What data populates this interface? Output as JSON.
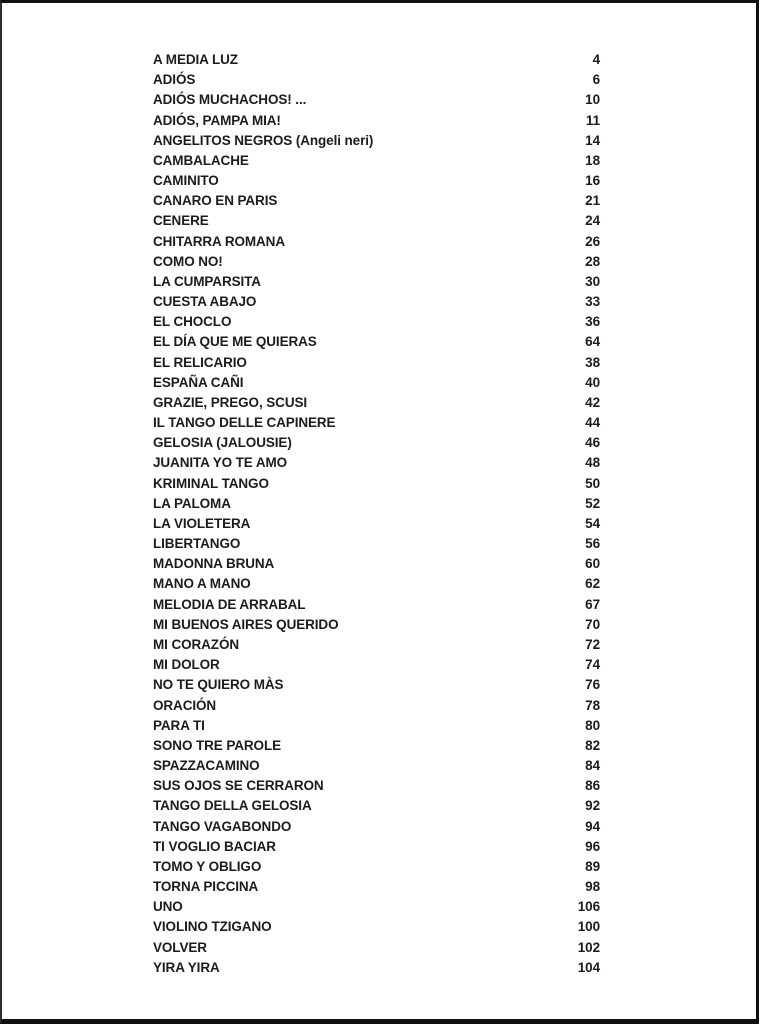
{
  "colors": {
    "page_background": "#ffffff",
    "text": "#1c1c1c",
    "frame": "#101010",
    "frame_left": "#2e2e2e"
  },
  "toc": {
    "entries": [
      {
        "title": "A MEDIA LUZ",
        "page": "4"
      },
      {
        "title": "ADIÓS",
        "page": "6"
      },
      {
        "title": "ADIÓS MUCHACHOS! ...",
        "page": "10"
      },
      {
        "title": "ADIÓS, PAMPA MIA!",
        "page": "11"
      },
      {
        "title": "ANGELITOS NEGROS (Angeli neri)",
        "page": "14"
      },
      {
        "title": "CAMBALACHE",
        "page": "18"
      },
      {
        "title": "CAMINITO",
        "page": "16"
      },
      {
        "title": "CANARO EN PARIS",
        "page": "21"
      },
      {
        "title": "CENERE",
        "page": "24"
      },
      {
        "title": "CHITARRA ROMANA",
        "page": "26"
      },
      {
        "title": "COMO NO!",
        "page": "28"
      },
      {
        "title": "LA CUMPARSITA",
        "page": "30"
      },
      {
        "title": "CUESTA ABAJO",
        "page": "33"
      },
      {
        "title": "EL CHOCLO",
        "page": "36"
      },
      {
        "title": "EL DÍA QUE ME QUIERAS",
        "page": "64"
      },
      {
        "title": "EL RELICARIO",
        "page": "38"
      },
      {
        "title": "ESPAÑA CAÑI",
        "page": "40"
      },
      {
        "title": "GRAZIE, PREGO, SCUSI",
        "page": "42"
      },
      {
        "title": "IL TANGO DELLE CAPINERE",
        "page": "44"
      },
      {
        "title": "GELOSIA (JALOUSIE)",
        "page": "46"
      },
      {
        "title": "JUANITA YO TE AMO",
        "page": "48"
      },
      {
        "title": "KRIMINAL TANGO",
        "page": "50"
      },
      {
        "title": "LA PALOMA",
        "page": "52"
      },
      {
        "title": "LA VIOLETERA",
        "page": "54"
      },
      {
        "title": "LIBERTANGO",
        "page": "56"
      },
      {
        "title": "MADONNA BRUNA",
        "page": "60"
      },
      {
        "title": "MANO A MANO",
        "page": "62"
      },
      {
        "title": "MELODIA DE ARRABAL",
        "page": "67"
      },
      {
        "title": "MI BUENOS AIRES QUERIDO",
        "page": "70"
      },
      {
        "title": "MI CORAZÓN",
        "page": "72"
      },
      {
        "title": "MI DOLOR",
        "page": "74"
      },
      {
        "title": "NO TE QUIERO MÀS",
        "page": "76"
      },
      {
        "title": "ORACIÓN",
        "page": "78"
      },
      {
        "title": "PARA TI",
        "page": "80"
      },
      {
        "title": "SONO TRE PAROLE",
        "page": "82"
      },
      {
        "title": "SPAZZACAMINO",
        "page": "84"
      },
      {
        "title": "SUS OJOS SE CERRARON",
        "page": "86"
      },
      {
        "title": "TANGO DELLA GELOSIA",
        "page": "92"
      },
      {
        "title": "TANGO VAGABONDO",
        "page": "94"
      },
      {
        "title": "TI VOGLIO BACIAR",
        "page": "96"
      },
      {
        "title": "TOMO Y OBLIGO",
        "page": "89"
      },
      {
        "title": "TORNA PICCINA",
        "page": "98"
      },
      {
        "title": "UNO",
        "page": "106"
      },
      {
        "title": "VIOLINO TZIGANO",
        "page": "100"
      },
      {
        "title": "VOLVER",
        "page": "102"
      },
      {
        "title": "YIRA YIRA",
        "page": "104"
      }
    ]
  }
}
